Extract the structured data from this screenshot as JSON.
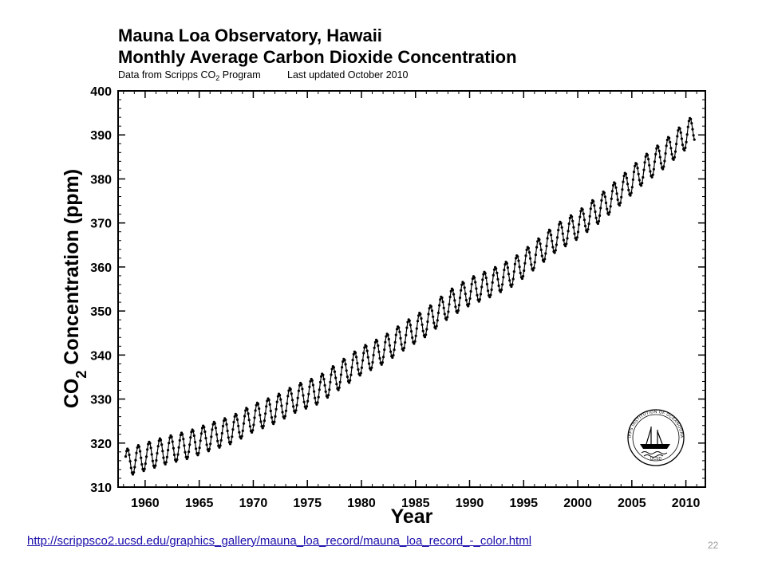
{
  "chart_data": {
    "type": "line",
    "title": "Mauna Loa Observatory, Hawaii",
    "subtitle": "Monthly Average Carbon Dioxide Concentration",
    "note_source": "Data from Scripps CO",
    "note_subscript": "2",
    "note_source_tail": " Program",
    "note_updated": "Last updated October 2010",
    "xlabel": "Year",
    "ylabel_prefix": "CO",
    "ylabel_subscript": "2",
    "ylabel_suffix": " Concentration (ppm)",
    "xlim": [
      1957.5,
      2011.8
    ],
    "ylim": [
      310,
      400
    ],
    "xticks": [
      "1960",
      "1965",
      "1970",
      "1975",
      "1980",
      "1985",
      "1990",
      "1995",
      "2000",
      "2005",
      "2010"
    ],
    "yticks": [
      "310",
      "320",
      "330",
      "340",
      "350",
      "360",
      "370",
      "380",
      "390",
      "400"
    ],
    "grid": false,
    "marker": "filled-circle",
    "line_color": "#000000",
    "series": [
      {
        "trend_years": [
          1958,
          1960,
          1962,
          1964,
          1966,
          1968,
          1970,
          1972,
          1974,
          1976,
          1978,
          1980,
          1982,
          1984,
          1986,
          1988,
          1990,
          1992,
          1994,
          1996,
          1998,
          2000,
          2002,
          2004,
          2006,
          2008,
          2010
        ],
        "trend_ppm": [
          315.3,
          316.9,
          318.4,
          319.6,
          321.4,
          323.0,
          325.7,
          327.6,
          330.2,
          332.0,
          335.4,
          338.7,
          341.1,
          344.4,
          347.4,
          351.4,
          354.4,
          356.4,
          358.8,
          362.6,
          366.6,
          369.5,
          373.2,
          377.4,
          381.9,
          385.6,
          389.9
        ],
        "seasonal_amplitude_ppm": 3.1,
        "first_month": 1958.2,
        "last_month": 2010.8
      }
    ]
  },
  "footer": {
    "source_url": "http://scrippsco2.ucsd.edu/graphics_gallery/mauna_loa_record/mauna_loa_record_-_color.html",
    "slide_number": "22"
  },
  "logo": {
    "name": "scripps-institution-seal",
    "top_text": "SCRIPPS INSTITUTION OF OCEANOGRAPHY",
    "bottom_text": "UCSD"
  }
}
